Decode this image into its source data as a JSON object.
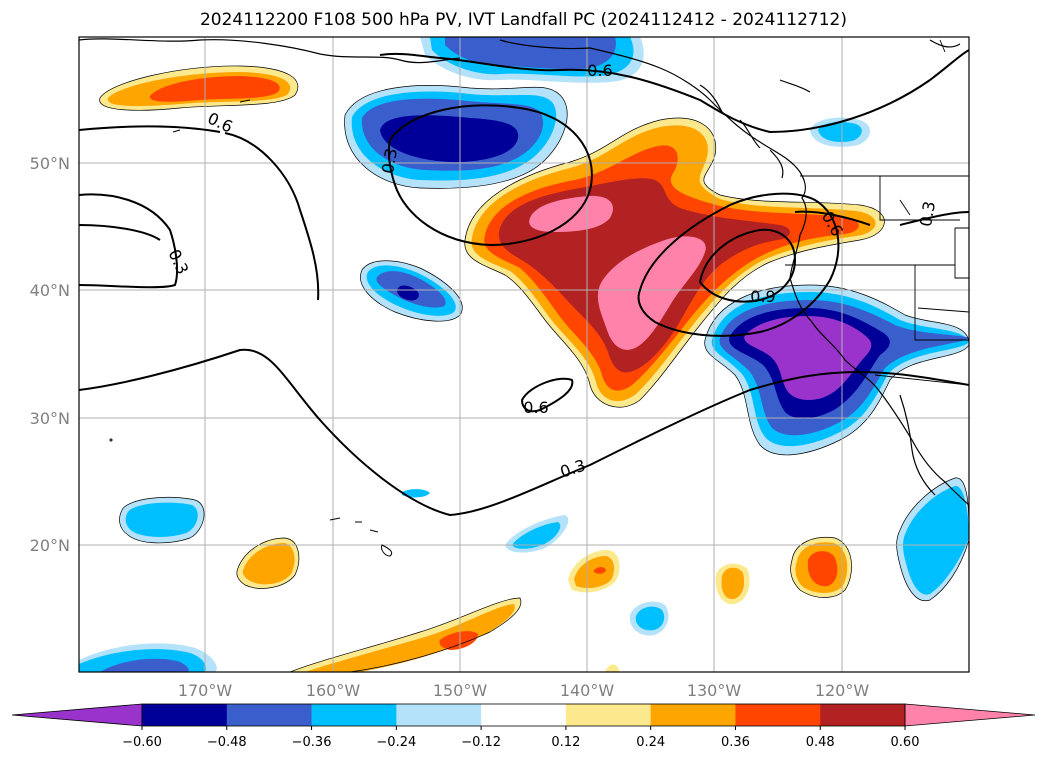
{
  "title": "2024112200 F108 500 hPa PV, IVT Landfall PC (2024112412 - 2024112712)",
  "map": {
    "lat_labels": [
      "50°N",
      "40°N",
      "30°N",
      "20°N"
    ],
    "lon_labels": [
      "170°W",
      "160°W",
      "150°W",
      "140°W",
      "130°W",
      "120°W"
    ],
    "contour_labels": [
      "0.6",
      "0.6",
      "0.3",
      "0.3",
      "0.3",
      "0.6",
      "0.9",
      "0.6",
      "0.3"
    ]
  },
  "colorbar": {
    "colors": [
      "#9933cc",
      "#000099",
      "#3a5fcd",
      "#00bfff",
      "#b3e2fa",
      "#ffffff",
      "#fde98d",
      "#ffa500",
      "#ff4500",
      "#b22222",
      "#ff82ab"
    ],
    "tick_labels": [
      "−0.60",
      "−0.48",
      "−0.36",
      "−0.24",
      "−0.12",
      "0.12",
      "0.24",
      "0.36",
      "0.48",
      "0.60"
    ]
  }
}
